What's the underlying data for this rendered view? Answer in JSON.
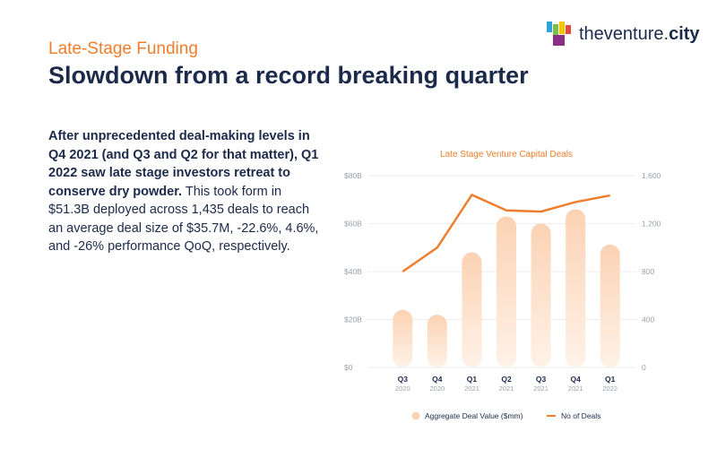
{
  "header": {
    "subtitle": "Late-Stage Funding",
    "title": "Slowdown from a record breaking quarter"
  },
  "logo": {
    "name": "theventure",
    "suffix": "city",
    "dot": "."
  },
  "body": {
    "bold": "After unprecedented deal-making levels in Q4 2021 (and Q3 and Q2 for that matter), Q1 2022 saw late stage investors retreat to conserve dry powder.",
    "regular": " This took form in $51.3B deployed across 1,435 deals to reach an average deal size of $35.7M, -22.6%, 4.6%, and -26% performance QoQ, respectively."
  },
  "colors": {
    "accent": "#ef7d2b",
    "bar_top": "#fbd2b3",
    "bar_bottom": "#fff2e8",
    "navy": "#1b2a4a"
  },
  "chart_data": {
    "type": "bar+line",
    "title": "Late Stage Venture Capital Deals",
    "categories": [
      "Q3",
      "Q4",
      "Q1",
      "Q2",
      "Q3",
      "Q4",
      "Q1"
    ],
    "years": [
      "2020",
      "2020",
      "2021",
      "2021",
      "2021",
      "2021",
      "2022"
    ],
    "left_axis": {
      "ylim": [
        0,
        80
      ],
      "ticks": [
        0,
        20,
        40,
        60,
        80
      ],
      "labels": [
        "$0",
        "$20B",
        "$40B",
        "$60B",
        "$80B"
      ]
    },
    "right_axis": {
      "ylim": [
        0,
        1600
      ],
      "ticks": [
        0,
        400,
        800,
        1200,
        1600
      ],
      "labels": [
        "0",
        "400",
        "800",
        "1,200",
        "1,600"
      ]
    },
    "series": [
      {
        "name": "Aggregate Deal Value ($mm)",
        "type": "bar",
        "axis": "left",
        "values": [
          24,
          22,
          48,
          63,
          60,
          66,
          51.3
        ]
      },
      {
        "name": "No of Deals",
        "type": "line",
        "axis": "right",
        "values": [
          800,
          1000,
          1440,
          1310,
          1300,
          1380,
          1435
        ]
      }
    ]
  }
}
